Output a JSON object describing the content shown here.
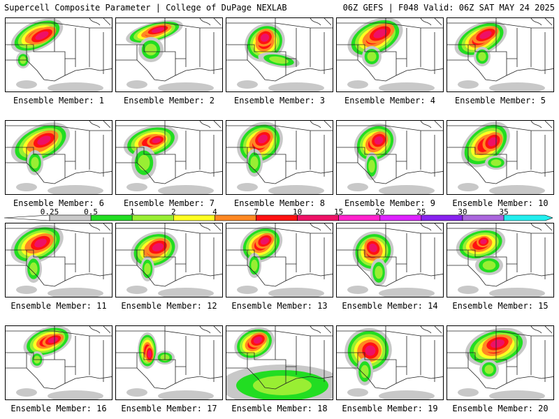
{
  "header": {
    "left_title": "Supercell Composite Parameter | College of DuPage NEXLAB",
    "right_title": "06Z GEFS | F048 Valid: 06Z SAT MAY 24 2025"
  },
  "colorbar": {
    "ticks": [
      "0.25",
      "0.5",
      "1",
      "2",
      "4",
      "7",
      "10",
      "15",
      "20",
      "25",
      "30",
      "35"
    ],
    "colors": [
      "#c8c8c8",
      "#22dd22",
      "#99ee33",
      "#ffff22",
      "#ff8822",
      "#ff1111",
      "#ee1166",
      "#ff22cc",
      "#dd22ff",
      "#8822ee",
      "#aa66dd",
      "#22eeee"
    ]
  },
  "panels": [
    {
      "label": "Ensemble Member: 1"
    },
    {
      "label": "Ensemble Member: 2"
    },
    {
      "label": "Ensemble Member: 3"
    },
    {
      "label": "Ensemble Member: 4"
    },
    {
      "label": "Ensemble Member: 5"
    },
    {
      "label": "Ensemble Member: 6"
    },
    {
      "label": "Ensemble Member: 7"
    },
    {
      "label": "Ensemble Member: 8"
    },
    {
      "label": "Ensemble Member: 9"
    },
    {
      "label": "Ensemble Member: 10"
    },
    {
      "label": "Ensemble Member: 11"
    },
    {
      "label": "Ensemble Member: 12"
    },
    {
      "label": "Ensemble Member: 13"
    },
    {
      "label": "Ensemble Member: 14"
    },
    {
      "label": "Ensemble Member: 15"
    },
    {
      "label": "Ensemble Member: 16"
    },
    {
      "label": "Ensemble Member: 17"
    },
    {
      "label": "Ensemble Member: 18"
    },
    {
      "label": "Ensemble Member: 19"
    },
    {
      "label": "Ensemble Member: 20"
    }
  ]
}
